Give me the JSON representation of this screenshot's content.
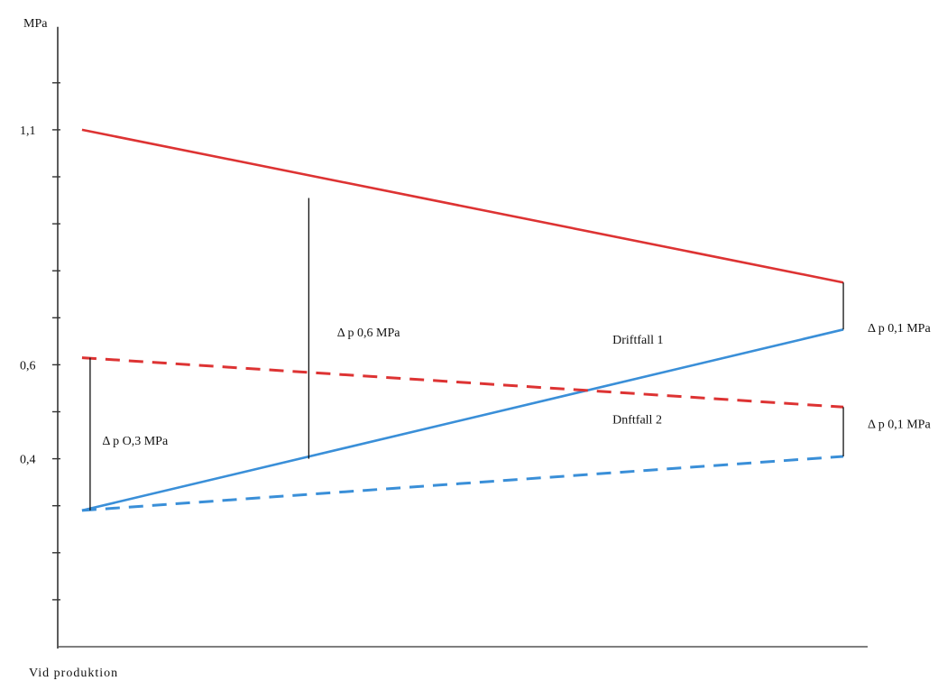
{
  "chart_data": {
    "type": "line",
    "ylabel": "MPa",
    "xlabel": "Vid produktion",
    "ylim": [
      0.0,
      1.3
    ],
    "xlim": [
      0,
      1
    ],
    "y_tick_step": 0.1,
    "y_tick_labels": [
      {
        "value": 1.1,
        "text": "1,1"
      },
      {
        "value": 0.6,
        "text": "0,6"
      },
      {
        "value": 0.4,
        "text": "0,4"
      }
    ],
    "series": [
      {
        "color": "#dd3333",
        "style": "solid",
        "x": [
          0.03,
          0.97
        ],
        "y": [
          1.1,
          0.775
        ]
      },
      {
        "color": "#3a8fd8",
        "style": "solid",
        "x": [
          0.03,
          0.97
        ],
        "y": [
          0.29,
          0.675
        ]
      },
      {
        "color": "#dd3333",
        "style": "dashed",
        "x": [
          0.03,
          0.97
        ],
        "y": [
          0.615,
          0.51
        ]
      },
      {
        "color": "#3a8fd8",
        "style": "dashed",
        "x": [
          0.03,
          0.97
        ],
        "y": [
          0.29,
          0.405
        ]
      }
    ],
    "annotations": [
      {
        "type": "dimension",
        "x": 0.31,
        "y_from": 0.4,
        "y_to": 0.955,
        "label": "Δ p 0,6 MPa",
        "label_x": 0.345,
        "label_y": 0.66
      },
      {
        "type": "dimension",
        "x": 0.97,
        "y_from": 0.675,
        "y_to": 0.775,
        "label": "Δ p 0,1 MPa",
        "label_x": 1.0,
        "label_y": 0.67
      },
      {
        "type": "dimension",
        "x": 0.97,
        "y_from": 0.405,
        "y_to": 0.51,
        "label": "Δ p 0,1 MPa",
        "label_x": 1.0,
        "label_y": 0.465
      },
      {
        "type": "dimension",
        "x": 0.04,
        "y_from": 0.29,
        "y_to": 0.615,
        "label": "Δ p O,3 MPa",
        "label_x": 0.055,
        "label_y": 0.43
      },
      {
        "type": "text",
        "label": "Driftfall 1",
        "label_x": 0.685,
        "label_y": 0.645
      },
      {
        "type": "text",
        "label": "Dnftfall 2",
        "label_x": 0.685,
        "label_y": 0.475
      }
    ]
  }
}
